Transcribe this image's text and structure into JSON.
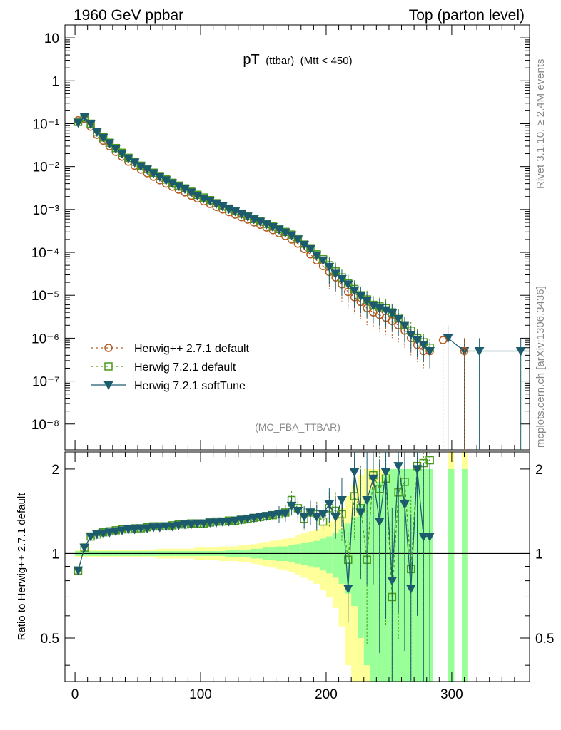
{
  "header": {
    "left": "1960 GeV ppbar",
    "right": "Top (parton level)"
  },
  "side": {
    "rivet": "Rivet 3.1.10, ≥ 2.4M events",
    "mcplots": "mcplots.cern.ch [arXiv:1306.3436]"
  },
  "chart_data": {
    "type": "line",
    "title": "pT",
    "title_small": "(ttbar)",
    "title_cut": "(Mtt < 450)",
    "watermark": "(MC_FBA_TTBAR)",
    "ylabel_ratio": "Ratio to Herwig++ 2.7.1 default",
    "x_range": [
      -8,
      362
    ],
    "y_range_log": [
      2.5e-09,
      20
    ],
    "ratio_range": [
      0.35,
      2.3
    ],
    "x_ticks": [
      "0",
      "100",
      "200",
      "300"
    ],
    "y_ticks": [
      "10",
      "1",
      "10⁻¹",
      "10⁻²",
      "10⁻³",
      "10⁻⁴",
      "10⁻⁵",
      "10⁻⁶",
      "10⁻⁷",
      "10⁻⁸"
    ],
    "ratio_ticks": [
      "0.5",
      "1",
      "2"
    ],
    "legend": [
      {
        "name": "Herwig++ 2.7.1 default",
        "color": "#b35a1f",
        "marker": "circle",
        "dash": true
      },
      {
        "name": "Herwig 7.2.1 default",
        "color": "#4c9a1a",
        "marker": "square",
        "dash": true
      },
      {
        "name": "Herwig 7.2.1 softTune",
        "color": "#1c5b6e",
        "marker": "triangle-down",
        "dash": false
      }
    ],
    "x": [
      2.5,
      7.5,
      12.5,
      17.5,
      22.5,
      27.5,
      32.5,
      37.5,
      42.5,
      47.5,
      52.5,
      57.5,
      62.5,
      67.5,
      72.5,
      77.5,
      82.5,
      87.5,
      92.5,
      97.5,
      102.5,
      107.5,
      112.5,
      117.5,
      122.5,
      127.5,
      132.5,
      137.5,
      142.5,
      147.5,
      152.5,
      157.5,
      162.5,
      167.5,
      172.5,
      177.5,
      182.5,
      187.5,
      192.5,
      197.5,
      202.5,
      207.5,
      212.5,
      217.5,
      222.5,
      227.5,
      232.5,
      237.5,
      242.5,
      247.5,
      252.5,
      257.5,
      262.5,
      267.5,
      272.5,
      277.5,
      282.5
    ],
    "series": [
      {
        "name": "Herwig++ 2.7.1 default",
        "values": [
          0.12,
          0.13,
          0.085,
          0.055,
          0.04,
          0.03,
          0.022,
          0.017,
          0.013,
          0.0105,
          0.0085,
          0.007,
          0.0058,
          0.0048,
          0.004,
          0.0034,
          0.0029,
          0.0025,
          0.0021,
          0.0018,
          0.00155,
          0.00135,
          0.00115,
          0.001,
          0.00087,
          0.00076,
          0.00066,
          0.00058,
          0.0005,
          0.00044,
          0.00038,
          0.00033,
          0.00028,
          0.00024,
          0.0002,
          0.00016,
          0.00012,
          9e-05,
          6.5e-05,
          4.8e-05,
          3.5e-05,
          2.6e-05,
          1.8e-05,
          1.2e-05,
          9e-06,
          7e-06,
          5e-06,
          4e-06,
          3.5e-06,
          3e-06,
          2.5e-06,
          2e-06,
          1.5e-06,
          1e-06,
          7e-07,
          5e-07,
          5e-07
        ]
      },
      {
        "name": "Herwig 7.2.1 default",
        "values": [
          0.11,
          0.14,
          0.1,
          0.065,
          0.048,
          0.036,
          0.027,
          0.021,
          0.016,
          0.013,
          0.0105,
          0.0088,
          0.0072,
          0.006,
          0.005,
          0.0042,
          0.0036,
          0.0031,
          0.0026,
          0.0022,
          0.0019,
          0.00165,
          0.0014,
          0.0012,
          0.00105,
          0.00092,
          0.0008,
          0.0007,
          0.0006,
          0.00053,
          0.00046,
          0.0004,
          0.00035,
          0.0003,
          0.00026,
          0.00021,
          0.00016,
          0.000125,
          9e-05,
          7e-05,
          5e-05,
          3.6e-05,
          2.6e-05,
          1.9e-05,
          1.4e-05,
          1e-05,
          8e-06,
          6e-06,
          5.5e-06,
          5e-06,
          4e-06,
          3e-06,
          2e-06,
          1.5e-06,
          1e-06,
          8e-07,
          6e-07
        ]
      },
      {
        "name": "Herwig 7.2.1 softTune",
        "values": [
          0.105,
          0.145,
          0.098,
          0.064,
          0.047,
          0.035,
          0.026,
          0.02,
          0.0155,
          0.0125,
          0.0102,
          0.0085,
          0.007,
          0.0058,
          0.0048,
          0.0041,
          0.0035,
          0.003,
          0.0025,
          0.0021,
          0.0018,
          0.0016,
          0.00135,
          0.00118,
          0.00102,
          0.0009,
          0.00078,
          0.00068,
          0.00059,
          0.00052,
          0.00045,
          0.00039,
          0.00034,
          0.00029,
          0.00025,
          0.0002,
          0.00015,
          0.00012,
          8.5e-05,
          6.5e-05,
          4.6e-05,
          3.2e-05,
          2.4e-05,
          1.8e-05,
          1.3e-05,
          9.5e-06,
          7.5e-06,
          5.8e-06,
          5e-06,
          4.5e-06,
          3.8e-06,
          2.8e-06,
          2e-06,
          1.2e-06,
          9e-07,
          7e-07,
          5e-07
        ]
      }
    ],
    "ratio_series": [
      {
        "name": "Herwig 7.2.1 default",
        "values": [
          0.87,
          1.05,
          1.15,
          1.17,
          1.19,
          1.2,
          1.21,
          1.22,
          1.22,
          1.23,
          1.23,
          1.24,
          1.25,
          1.25,
          1.25,
          1.26,
          1.27,
          1.27,
          1.28,
          1.28,
          1.28,
          1.29,
          1.3,
          1.3,
          1.31,
          1.31,
          1.32,
          1.33,
          1.34,
          1.35,
          1.36,
          1.37,
          1.38,
          1.4,
          1.55,
          1.45,
          1.33,
          1.4,
          1.38,
          1.3,
          1.45,
          1.42,
          1.38,
          0.95,
          1.6,
          1.45,
          0.95,
          1.9,
          1.7,
          1.85,
          0.7,
          1.65,
          1.8,
          0.88,
          2.05,
          2.1,
          2.15
        ]
      },
      {
        "name": "Herwig 7.2.1 softTune",
        "values": [
          0.87,
          1.05,
          1.15,
          1.17,
          1.18,
          1.19,
          1.2,
          1.21,
          1.22,
          1.22,
          1.23,
          1.23,
          1.24,
          1.24,
          1.25,
          1.25,
          1.26,
          1.27,
          1.27,
          1.28,
          1.28,
          1.29,
          1.29,
          1.3,
          1.3,
          1.31,
          1.32,
          1.33,
          1.34,
          1.35,
          1.36,
          1.37,
          1.38,
          1.39,
          1.48,
          1.42,
          1.35,
          1.4,
          1.35,
          1.38,
          1.5,
          1.35,
          1.55,
          0.75,
          1.95,
          1.4,
          1.55,
          1.85,
          1.3,
          1.95,
          0.8,
          2.05,
          1.5,
          0.75,
          2.0,
          1.15,
          1.15
        ]
      }
    ],
    "band_green": [
      0.02,
      0.02,
      0.02,
      0.02,
      0.02,
      0.02,
      0.02,
      0.02,
      0.02,
      0.02,
      0.02,
      0.02,
      0.02,
      0.02,
      0.02,
      0.02,
      0.02,
      0.02,
      0.02,
      0.02,
      0.02,
      0.02,
      0.02,
      0.02,
      0.03,
      0.03,
      0.03,
      0.03,
      0.04,
      0.04,
      0.05,
      0.05,
      0.06,
      0.06,
      0.07,
      0.08,
      0.09,
      0.1,
      0.11,
      0.13,
      0.15,
      0.18,
      0.22,
      0.28,
      0.35,
      0.5,
      0.6,
      0.7,
      0.8,
      0.9,
      1.0,
      1.0,
      1.0,
      1.0,
      1.0,
      1.0,
      1.0
    ],
    "band_yellow": [
      0.03,
      0.03,
      0.03,
      0.03,
      0.03,
      0.03,
      0.03,
      0.03,
      0.03,
      0.03,
      0.03,
      0.03,
      0.03,
      0.04,
      0.04,
      0.04,
      0.04,
      0.04,
      0.04,
      0.05,
      0.05,
      0.05,
      0.05,
      0.06,
      0.06,
      0.06,
      0.07,
      0.07,
      0.08,
      0.09,
      0.1,
      0.11,
      0.12,
      0.13,
      0.14,
      0.16,
      0.18,
      0.2,
      0.22,
      0.26,
      0.3,
      0.36,
      0.45,
      0.6,
      0.75,
      0.9,
      1.0,
      1.0,
      1.0,
      1.0,
      1.0,
      1.0,
      1.0,
      1.0,
      1.0,
      1.0,
      1.0
    ]
  }
}
